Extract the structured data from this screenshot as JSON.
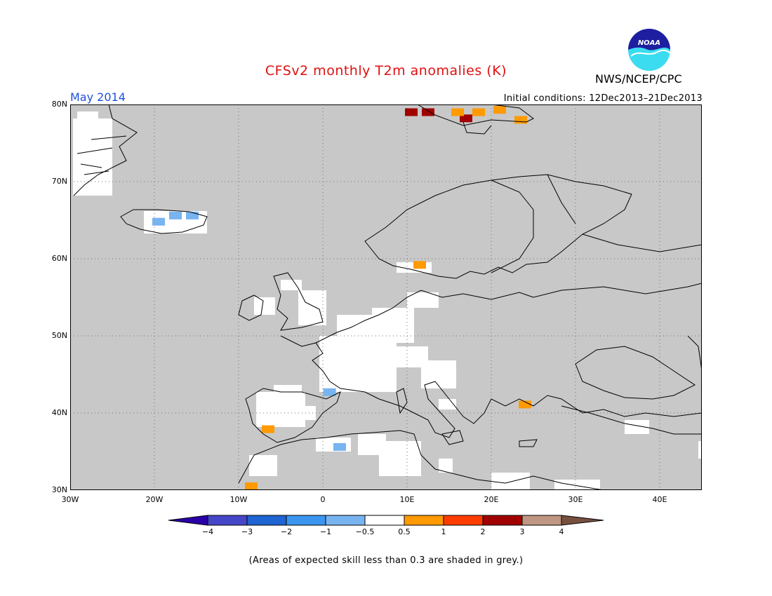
{
  "header": {
    "title": "CFSv2 monthly T2m anomalies (K)",
    "month": "May 2014",
    "agency": "NWS/NCEP/CPC",
    "initial_conditions": "Initial conditions: 12Dec2013–21Dec2013"
  },
  "logo": {
    "text": "NOAA",
    "icon": "noaa-logo"
  },
  "map": {
    "region": "Europe",
    "lon_range": [
      -30,
      45
    ],
    "lat_range": [
      30,
      80
    ],
    "lat_ticks": [
      "30N",
      "40N",
      "50N",
      "60N",
      "70N",
      "80N"
    ],
    "lon_ticks": [
      "30W",
      "20W",
      "10W",
      "0",
      "10E",
      "20E",
      "30E",
      "40E"
    ],
    "grid": "dotted",
    "background_meaning": "grey = skill < 0.3",
    "colors": {
      "grey": "#c8c8c8",
      "white": "#ffffff",
      "coast": "#000000"
    },
    "anomaly_cells": [
      {
        "lon": 10.5,
        "lat": 79.0,
        "value": 2.0
      },
      {
        "lon": 12.5,
        "lat": 79.0,
        "value": 2.0
      },
      {
        "lon": 17.0,
        "lat": 78.2,
        "value": 2.0
      },
      {
        "lon": 16.0,
        "lat": 79.0,
        "value": 0.7
      },
      {
        "lon": 18.5,
        "lat": 79.0,
        "value": 0.7
      },
      {
        "lon": 21.0,
        "lat": 79.3,
        "value": 0.7
      },
      {
        "lon": 23.5,
        "lat": 78.0,
        "value": 0.7
      },
      {
        "lon": -17.5,
        "lat": 65.6,
        "value": -0.7
      },
      {
        "lon": -15.5,
        "lat": 65.6,
        "value": -0.7
      },
      {
        "lon": -19.5,
        "lat": 64.8,
        "value": -0.7
      },
      {
        "lon": 11.5,
        "lat": 59.2,
        "value": 0.7
      },
      {
        "lon": 0.8,
        "lat": 42.7,
        "value": -0.7
      },
      {
        "lon": -6.5,
        "lat": 37.9,
        "value": 0.7
      },
      {
        "lon": 2.0,
        "lat": 35.6,
        "value": -0.7
      },
      {
        "lon": -8.5,
        "lat": 30.5,
        "value": 0.7
      },
      {
        "lon": 24.0,
        "lat": 41.1,
        "value": 0.7
      }
    ]
  },
  "colorbar": {
    "labels": [
      "−4",
      "−3",
      "−2",
      "−1",
      "−0.5",
      "0.5",
      "1",
      "2",
      "3",
      "4"
    ],
    "colors": [
      "#2a00a8",
      "#4646c8",
      "#1e64d2",
      "#3c96f0",
      "#78b4f0",
      "#ffffff",
      "#ff9a00",
      "#ff3c00",
      "#a00000",
      "#be9682",
      "#785040"
    ]
  },
  "footnote": "(Areas of expected skill less than 0.3 are shaded in grey.)"
}
